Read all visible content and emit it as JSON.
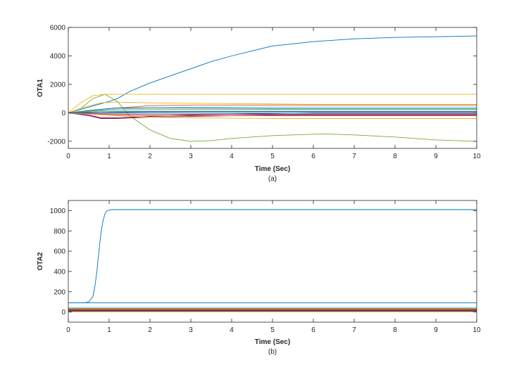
{
  "chart_data": [
    {
      "type": "line",
      "caption": "(a)",
      "xlabel": "Time (Sec)",
      "ylabel": "OTA1",
      "xlim": [
        0,
        10
      ],
      "ylim": [
        -2500,
        6000
      ],
      "xticks": [
        0,
        1,
        2,
        3,
        4,
        5,
        6,
        7,
        8,
        9,
        10
      ],
      "yticks": [
        -2000,
        0,
        2000,
        4000,
        6000
      ],
      "grid": false,
      "series": [
        {
          "color": "#0072BD",
          "x": [
            0,
            0.5,
            1,
            1.2,
            1.5,
            2,
            2.5,
            3,
            3.5,
            4,
            5,
            6,
            7,
            8,
            9,
            10
          ],
          "y": [
            0,
            400,
            800,
            1000,
            1500,
            2100,
            2600,
            3100,
            3600,
            4000,
            4700,
            5000,
            5200,
            5300,
            5350,
            5400
          ]
        },
        {
          "color": "#77AC30",
          "x": [
            0,
            0.3,
            0.6,
            0.9,
            1.2,
            1.5,
            2,
            2.5,
            3,
            3.5,
            4,
            5,
            6,
            6.3,
            7,
            8,
            9,
            10
          ],
          "y": [
            0,
            300,
            1000,
            1300,
            800,
            -200,
            -1200,
            -1800,
            -2000,
            -1950,
            -1800,
            -1600,
            -1500,
            -1480,
            -1550,
            -1700,
            -1900,
            -2000
          ]
        },
        {
          "color": "#EDB120",
          "x": [
            0,
            0.3,
            0.6,
            0.9,
            1.2,
            2,
            3,
            4,
            5,
            6,
            7,
            8,
            9,
            10
          ],
          "y": [
            0,
            700,
            1200,
            1300,
            1300,
            1300,
            1300,
            1300,
            1300,
            1300,
            1300,
            1300,
            1300,
            1300
          ]
        },
        {
          "color": "#EDB120",
          "x": [
            0,
            0.4,
            0.8,
            1.2,
            2,
            4,
            6,
            8,
            10
          ],
          "y": [
            0,
            400,
            700,
            750,
            700,
            650,
            600,
            600,
            600
          ]
        },
        {
          "color": "#D95319",
          "x": [
            0,
            0.5,
            1,
            1.5,
            2,
            3,
            4,
            5,
            6,
            7,
            8,
            9,
            10
          ],
          "y": [
            0,
            150,
            300,
            400,
            500,
            550,
            550,
            550,
            550,
            550,
            550,
            550,
            550
          ]
        },
        {
          "color": "#4DBEEE",
          "x": [
            0,
            0.5,
            1,
            1.5,
            2,
            3,
            4,
            5,
            6,
            7,
            8,
            9,
            10
          ],
          "y": [
            0,
            100,
            250,
            300,
            350,
            380,
            400,
            400,
            400,
            400,
            400,
            400,
            400
          ]
        },
        {
          "color": "#0072BD",
          "x": [
            0,
            0.6,
            1.2,
            2,
            3,
            4,
            5,
            6,
            7,
            8,
            9,
            10
          ],
          "y": [
            0,
            200,
            350,
            350,
            330,
            320,
            300,
            300,
            300,
            300,
            300,
            300
          ]
        },
        {
          "color": "#7E2F8E",
          "x": [
            0,
            0.5,
            0.8,
            1.2,
            2,
            3,
            4,
            5,
            6,
            7,
            8,
            9,
            10
          ],
          "y": [
            0,
            -200,
            -400,
            -400,
            -300,
            -250,
            -200,
            -150,
            -150,
            -150,
            -150,
            -150,
            -150
          ]
        },
        {
          "color": "#A2142F",
          "x": [
            0,
            0.5,
            0.8,
            1.2,
            2,
            3,
            4,
            5,
            6,
            7,
            8,
            9,
            10
          ],
          "y": [
            0,
            -150,
            -350,
            -350,
            -250,
            -150,
            -100,
            -50,
            0,
            0,
            0,
            0,
            0
          ]
        },
        {
          "color": "#77AC30",
          "x": [
            0,
            0.6,
            1.2,
            2,
            3,
            4,
            5,
            6,
            7,
            8,
            9,
            10
          ],
          "y": [
            0,
            120,
            200,
            250,
            250,
            250,
            250,
            250,
            250,
            250,
            250,
            250
          ]
        },
        {
          "color": "#D95319",
          "x": [
            0,
            0.6,
            1.2,
            2,
            3,
            4,
            5,
            6,
            7,
            8,
            9,
            10
          ],
          "y": [
            0,
            -80,
            -150,
            -200,
            -200,
            -200,
            -200,
            -200,
            -200,
            -200,
            -200,
            -200
          ]
        },
        {
          "color": "#4DBEEE",
          "x": [
            0,
            0.6,
            1.2,
            2,
            3,
            4,
            5,
            6,
            7,
            8,
            9,
            10
          ],
          "y": [
            0,
            60,
            100,
            120,
            120,
            120,
            120,
            120,
            120,
            120,
            120,
            120
          ]
        },
        {
          "color": "#7E2F8E",
          "x": [
            0,
            0.6,
            1.2,
            2,
            3,
            4,
            5,
            6,
            7,
            8,
            9,
            10
          ],
          "y": [
            0,
            -40,
            -80,
            -100,
            -100,
            -100,
            -100,
            -100,
            -100,
            -100,
            -100,
            -100
          ]
        },
        {
          "color": "#262626",
          "x": [
            0,
            0.6,
            1.2,
            2,
            3,
            4,
            5,
            6,
            7,
            8,
            9,
            10
          ],
          "y": [
            0,
            30,
            60,
            80,
            80,
            80,
            80,
            80,
            80,
            80,
            80,
            80
          ]
        },
        {
          "color": "#EDB120",
          "x": [
            0,
            0.6,
            1.2,
            2,
            3,
            4,
            5,
            6,
            7,
            8,
            9,
            10
          ],
          "y": [
            0,
            -100,
            -200,
            -300,
            -350,
            -380,
            -400,
            -400,
            -400,
            -400,
            -400,
            -400
          ]
        },
        {
          "color": "#0072BD",
          "x": [
            0,
            0.6,
            1.2,
            2,
            3,
            4,
            5,
            6,
            7,
            8,
            9,
            10
          ],
          "y": [
            0,
            40,
            20,
            0,
            -20,
            -30,
            -30,
            -30,
            -30,
            -30,
            -30,
            -30
          ]
        }
      ]
    },
    {
      "type": "line",
      "caption": "(b)",
      "xlabel": "Time (Sec)",
      "ylabel": "OTA2",
      "xlim": [
        0,
        10
      ],
      "ylim": [
        -100,
        1100
      ],
      "xticks": [
        0,
        1,
        2,
        3,
        4,
        5,
        6,
        7,
        8,
        9,
        10
      ],
      "yticks": [
        0,
        200,
        400,
        600,
        800,
        1000
      ],
      "grid": false,
      "series": [
        {
          "color": "#0072BD",
          "x": [
            0,
            0.4,
            0.5,
            0.6,
            0.65,
            0.7,
            0.75,
            0.8,
            0.85,
            0.9,
            0.95,
            1,
            1.1,
            1.5,
            2,
            3,
            4,
            5,
            6,
            7,
            8,
            9,
            10
          ],
          "y": [
            90,
            90,
            100,
            150,
            250,
            400,
            600,
            780,
            900,
            970,
            1000,
            1005,
            1010,
            1010,
            1010,
            1010,
            1010,
            1010,
            1010,
            1010,
            1010,
            1010,
            1010
          ]
        },
        {
          "color": "#0072BD",
          "x": [
            0,
            10
          ],
          "y": [
            90,
            90
          ]
        },
        {
          "color": "#4DBEEE",
          "x": [
            0,
            10
          ],
          "y": [
            45,
            45
          ]
        },
        {
          "color": "#77AC30",
          "x": [
            0,
            10
          ],
          "y": [
            35,
            35
          ]
        },
        {
          "color": "#D95319",
          "x": [
            0,
            10
          ],
          "y": [
            28,
            28
          ]
        },
        {
          "color": "#7E2F8E",
          "x": [
            0,
            10
          ],
          "y": [
            22,
            22
          ]
        },
        {
          "color": "#262626",
          "x": [
            0,
            10
          ],
          "y": [
            15,
            15
          ]
        },
        {
          "color": "#A2142F",
          "x": [
            0,
            10
          ],
          "y": [
            8,
            8
          ]
        },
        {
          "color": "#EDB120",
          "x": [
            0,
            10
          ],
          "y": [
            2,
            2
          ]
        }
      ]
    }
  ]
}
